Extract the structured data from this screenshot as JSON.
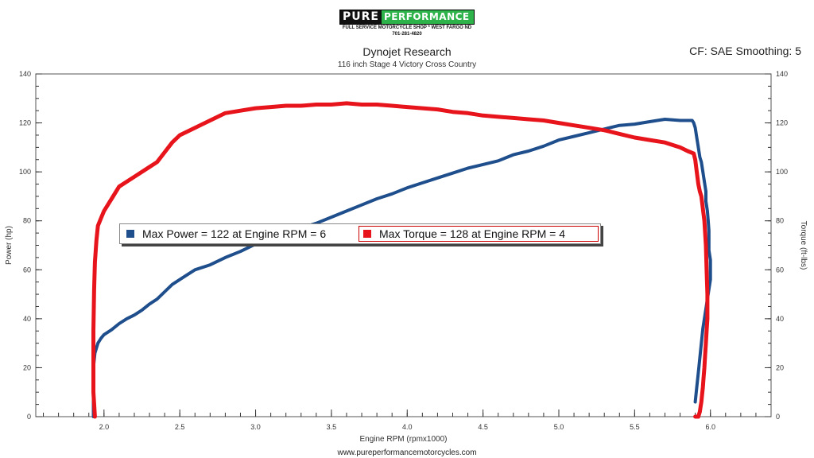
{
  "logo": {
    "pure": "PURE",
    "performance": "PERFORMANCE",
    "line1": "FULL SERVICE MOTORCYCLE SHOP * WEST FARGO ND",
    "line2": "701-281-4820"
  },
  "header": {
    "title": "Dynojet Research",
    "subtitle": "116 inch Stage 4 Victory Cross Country",
    "cf": "CF: SAE Smoothing: 5"
  },
  "footer": {
    "url": "www.pureperformancemotorcycles.com"
  },
  "legend": {
    "power": "Max Power = 122 at Engine RPM = 6",
    "torque": "Max Torque = 128 at Engine RPM = 4"
  },
  "colors": {
    "power": "#1f4e8c",
    "torque": "#e8141c"
  },
  "chart_data": {
    "type": "line",
    "xlabel": "Engine RPM (rpmx1000)",
    "ylabel": "Power (hp)",
    "y2label": "Torque (ft-lbs)",
    "xlim": [
      1.55,
      6.4
    ],
    "ylim": [
      0,
      140
    ],
    "y2lim": [
      0,
      140
    ],
    "x_ticks": [
      "2.0",
      "2.5",
      "3.0",
      "3.5",
      "4.0",
      "4.5",
      "5.0",
      "5.5",
      "6.0"
    ],
    "y_ticks": [
      "0",
      "20",
      "40",
      "60",
      "80",
      "100",
      "120",
      "140"
    ],
    "grid": false,
    "series": [
      {
        "name": "Power",
        "axis": "left",
        "x": [
          1.93,
          1.93,
          1.94,
          1.96,
          1.98,
          2.0,
          2.05,
          2.1,
          2.15,
          2.2,
          2.25,
          2.3,
          2.35,
          2.4,
          2.45,
          2.5,
          2.55,
          2.6,
          2.7,
          2.8,
          2.9,
          3.0,
          3.1,
          3.2,
          3.3,
          3.4,
          3.5,
          3.6,
          3.7,
          3.8,
          3.9,
          4.0,
          4.1,
          4.2,
          4.3,
          4.4,
          4.5,
          4.6,
          4.7,
          4.8,
          4.9,
          5.0,
          5.1,
          5.2,
          5.3,
          5.4,
          5.5,
          5.6,
          5.7,
          5.8,
          5.85,
          5.88,
          5.89,
          5.9,
          5.91,
          5.92,
          5.93,
          5.94,
          5.95,
          5.96,
          5.97,
          5.97,
          5.98,
          5.985,
          5.99,
          5.99,
          5.99,
          6.0,
          6.0,
          6.0,
          5.99,
          5.98,
          5.97,
          5.96,
          5.95,
          5.94,
          5.93,
          5.92,
          5.91,
          5.9
        ],
        "y": [
          0,
          20,
          26,
          30,
          32,
          33.5,
          35.5,
          38,
          40,
          41.5,
          43.5,
          46,
          48,
          51,
          54,
          56,
          58,
          60,
          62,
          65,
          67.5,
          70.5,
          72.5,
          75,
          77,
          79,
          81.5,
          84,
          86.5,
          89,
          91,
          93.5,
          95.5,
          97.5,
          99.5,
          101.5,
          103,
          104.5,
          107,
          108.5,
          110.5,
          113,
          114.5,
          116,
          117.5,
          119,
          119.5,
          120.5,
          121.5,
          121,
          121,
          121,
          120,
          118,
          114,
          110,
          106,
          104,
          100,
          96,
          92,
          88,
          84,
          80,
          76,
          72,
          68,
          64,
          60,
          56,
          52,
          48,
          44,
          40,
          36,
          30,
          24,
          18,
          12,
          6
        ]
      },
      {
        "name": "Torque",
        "axis": "right",
        "x": [
          1.94,
          1.93,
          1.93,
          1.93,
          1.935,
          1.94,
          1.95,
          1.96,
          1.98,
          2.0,
          2.05,
          2.1,
          2.2,
          2.3,
          2.35,
          2.4,
          2.45,
          2.5,
          2.6,
          2.7,
          2.8,
          2.9,
          3.0,
          3.1,
          3.2,
          3.3,
          3.4,
          3.5,
          3.6,
          3.7,
          3.8,
          3.9,
          4.0,
          4.1,
          4.2,
          4.3,
          4.4,
          4.5,
          4.6,
          4.7,
          4.8,
          4.9,
          5.0,
          5.1,
          5.2,
          5.3,
          5.4,
          5.5,
          5.6,
          5.7,
          5.8,
          5.85,
          5.89,
          5.9,
          5.91,
          5.92,
          5.93,
          5.94,
          5.95,
          5.96,
          5.97,
          5.975,
          5.98,
          5.98,
          5.975,
          5.97,
          5.965,
          5.96,
          5.955,
          5.95,
          5.945,
          5.94,
          5.935,
          5.93,
          5.925,
          5.92,
          5.91,
          5.9
        ],
        "y": [
          0,
          10,
          20,
          35,
          52,
          63,
          72,
          78,
          81,
          84,
          89,
          94,
          98,
          102,
          104,
          108,
          112,
          115,
          118,
          121,
          124,
          125,
          126,
          126.5,
          127,
          127,
          127.5,
          127.5,
          128,
          127.5,
          127.5,
          127,
          126.5,
          126,
          125.5,
          124.5,
          124,
          123,
          122.5,
          122,
          121.5,
          121,
          120,
          119,
          118,
          117,
          115.5,
          114,
          113,
          112,
          110,
          108.5,
          107.5,
          105,
          100,
          95,
          92,
          90,
          85,
          80,
          70,
          60,
          50,
          40,
          35,
          30,
          25,
          20,
          16,
          12,
          9,
          6,
          4,
          2,
          1,
          0,
          0,
          0
        ]
      }
    ]
  }
}
